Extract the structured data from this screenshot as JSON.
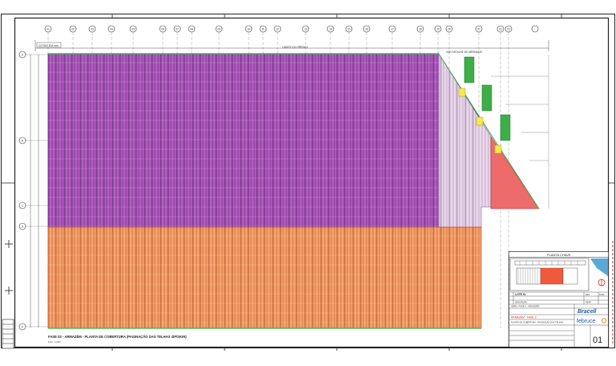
{
  "drawing": {
    "grid_labels_top": [
      "01",
      "02",
      "03",
      "04",
      "05",
      "06",
      "07",
      "08",
      "09",
      "10",
      "11",
      "12",
      "13",
      "14",
      "15",
      "16",
      "17",
      "18",
      "19",
      "20",
      "21",
      "22",
      "23"
    ],
    "grid_labels_left": [
      "A",
      "B",
      "C",
      "D",
      "E"
    ],
    "page_title": "FASE 03 - ARMAZÉM - PLANTA DE COBERTURA (PAGINAÇÃO DAS TELHAS ZIP/SKIN)",
    "page_scale": "ESC: 1/200",
    "top_left_note": "COTAS EM mm",
    "top_note": "LIMITE DO PRÉDIO",
    "right_note": "VER DETALHE DE ARREMATE",
    "colors": {
      "purple": "#b05cc0",
      "purple_line": "#6a2a7a",
      "orange": "#f5a36c",
      "orange_line": "#c0562a",
      "green": "#3fae49",
      "yellow": "#f6e94a",
      "red": "#ee6b6b",
      "frame": "#222222",
      "accent_red": "#e02020",
      "brand_blue": "#1f5aa6",
      "brand_orange": "#f08a24"
    }
  },
  "title_block": {
    "key_plan_title": "PLANTA CHAVE",
    "project_code": "LOTE 01",
    "project_name": "OBRA: FASE 3 - ARMAZÉM",
    "phase_label": "ARMAZÉM - FASE 3",
    "sheet_description": "PLANTA DE COBERTURA - PAGINAÇÃO DAS TELHAS",
    "client_brand": "Bracell",
    "company_brand": "februce",
    "sheet_number": "01",
    "revision_labels": [
      "REV",
      "DATA",
      "DESCRIÇÃO",
      "RESP."
    ]
  }
}
